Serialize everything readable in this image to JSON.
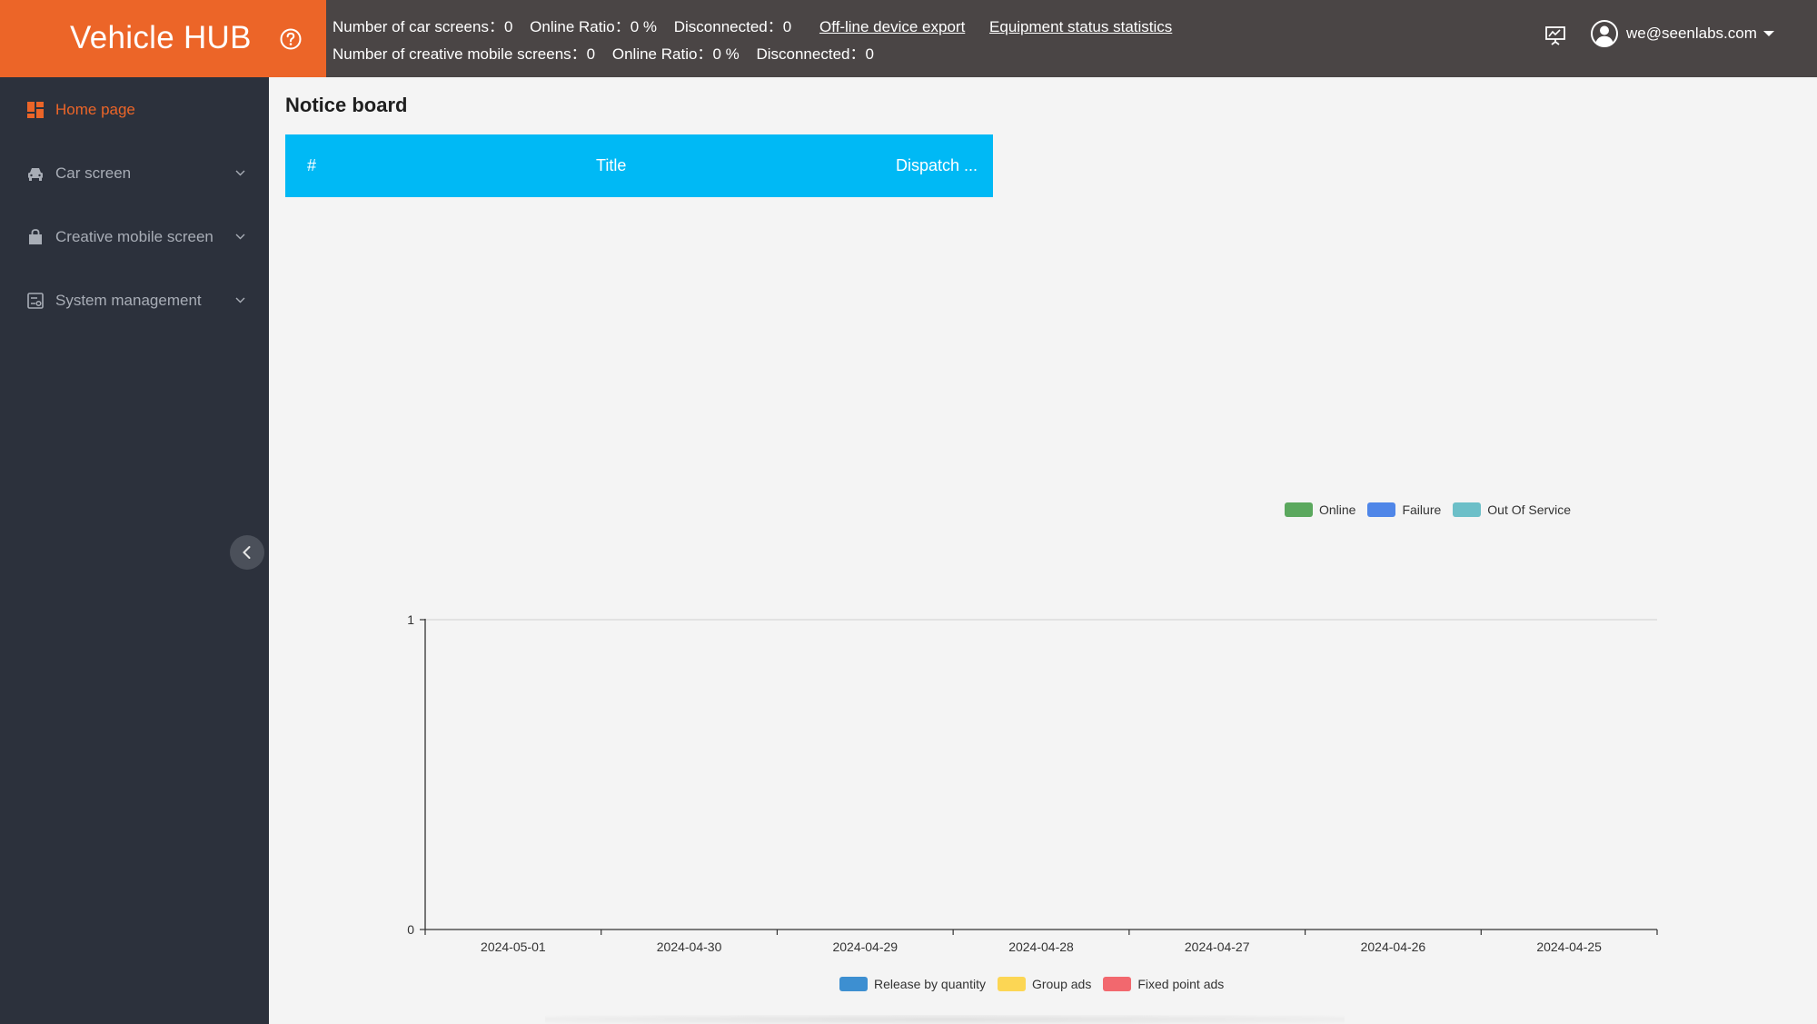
{
  "app": {
    "title": "Vehicle HUB"
  },
  "topbar": {
    "car_screens_label": "Number of car screens：",
    "car_screens_value": "0",
    "car_online_ratio_label": "Online Ratio：",
    "car_online_ratio_value": "0 %",
    "car_disconnected_label": "Disconnected：",
    "car_disconnected_value": "0",
    "offline_export_link": "Off-line device export",
    "equipment_stats_link": "Equipment status statistics",
    "mobile_screens_label": "Number of creative mobile screens：",
    "mobile_screens_value": "0",
    "mobile_online_ratio_label": "Online Ratio：",
    "mobile_online_ratio_value": "0 %",
    "mobile_disconnected_label": "Disconnected：",
    "mobile_disconnected_value": "0",
    "user_email": "we@seenlabs.com"
  },
  "sidebar": {
    "items": [
      {
        "label": "Home page",
        "icon": "dashboard-icon",
        "active": true
      },
      {
        "label": "Car screen",
        "icon": "car-icon",
        "active": false
      },
      {
        "label": "Creative mobile screen",
        "icon": "bag-icon",
        "active": false
      },
      {
        "label": "System management",
        "icon": "system-icon",
        "active": false
      }
    ]
  },
  "notice_board": {
    "title": "Notice board",
    "columns": [
      "#",
      "Title",
      "Dispatch ..."
    ]
  },
  "legend_top": [
    {
      "label": "Online",
      "color": "#5ba85e"
    },
    {
      "label": "Failure",
      "color": "#4f86e8"
    },
    {
      "label": "Out Of Service",
      "color": "#6cbfc8"
    }
  ],
  "chart_data": {
    "type": "bar",
    "categories": [
      "2024-05-01",
      "2024-04-30",
      "2024-04-29",
      "2024-04-28",
      "2024-04-27",
      "2024-04-26",
      "2024-04-25"
    ],
    "series": [
      {
        "name": "Release by quantity",
        "values": [
          0,
          0,
          0,
          0,
          0,
          0,
          0
        ],
        "color": "#3d8fd1"
      },
      {
        "name": "Group ads",
        "values": [
          0,
          0,
          0,
          0,
          0,
          0,
          0
        ],
        "color": "#fcd654"
      },
      {
        "name": "Fixed point ads",
        "values": [
          0,
          0,
          0,
          0,
          0,
          0,
          0
        ],
        "color": "#f2686e"
      }
    ],
    "ylim": [
      0,
      1
    ],
    "yticks": [
      "0",
      "1"
    ],
    "legend_position": "bottom-center"
  }
}
